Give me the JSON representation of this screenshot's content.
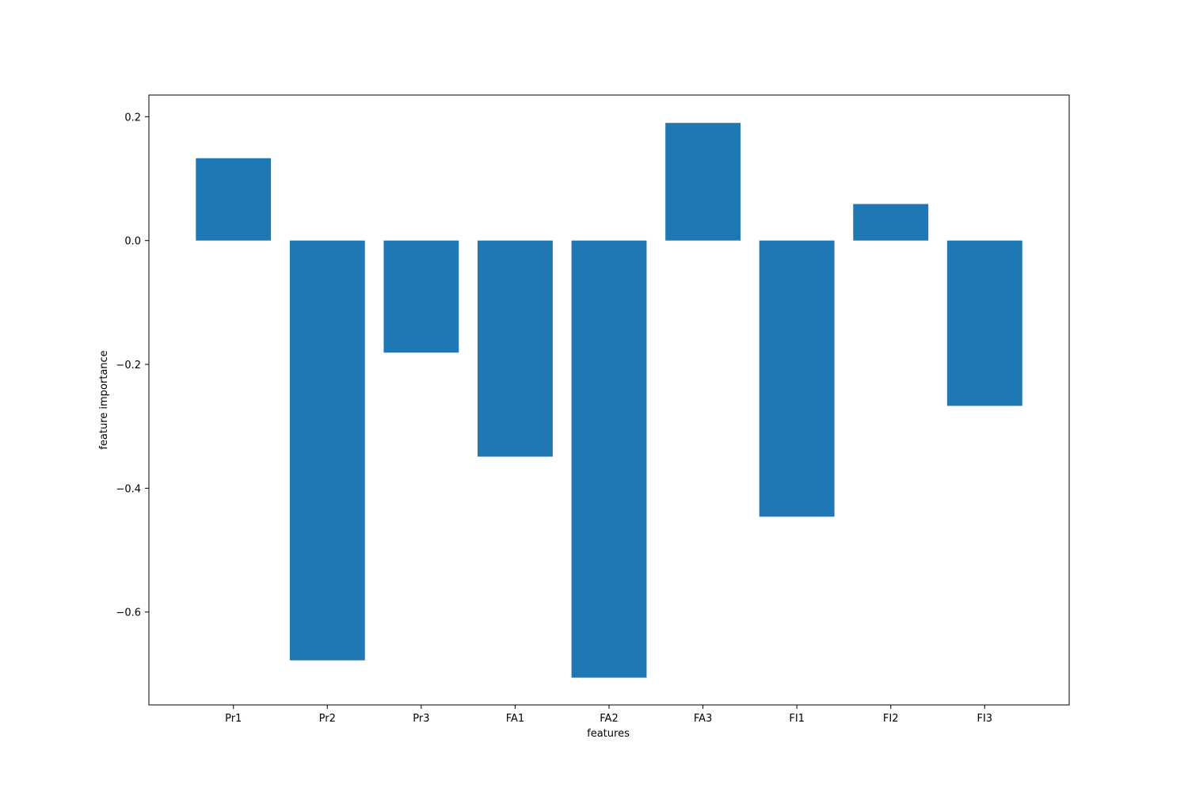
{
  "chart_data": {
    "type": "bar",
    "title": "",
    "xlabel": "features",
    "ylabel": "feature importance",
    "categories": [
      "Pr1",
      "Pr2",
      "Pr3",
      "FA1",
      "FA2",
      "FA3",
      "FI1",
      "FI2",
      "FI3"
    ],
    "values": [
      0.133,
      -0.678,
      -0.181,
      -0.349,
      -0.706,
      0.19,
      -0.446,
      0.059,
      -0.267
    ],
    "ylim": [
      -0.75,
      0.235
    ],
    "yticks": [
      0.2,
      0.0,
      -0.2,
      -0.4,
      -0.6
    ],
    "ytick_labels": [
      "0.2",
      "0.0",
      "−0.2",
      "−0.4",
      "−0.6"
    ],
    "grid": false,
    "legend": "none",
    "bar_color": "#1f77b4"
  }
}
